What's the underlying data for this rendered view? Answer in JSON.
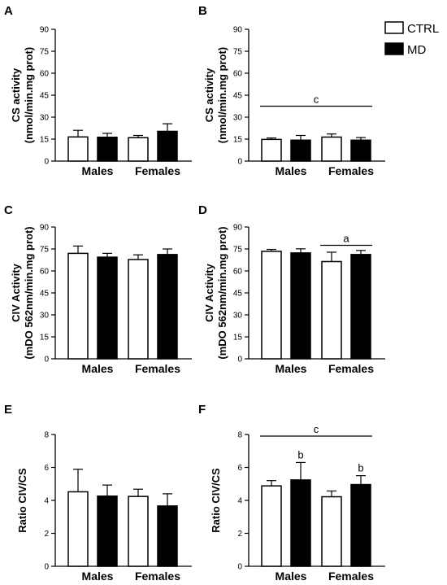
{
  "legend": {
    "position": "top-right",
    "items": [
      {
        "label": "CTRL",
        "color": "#ffffff"
      },
      {
        "label": "MD",
        "color": "#000000"
      }
    ]
  },
  "chart_data": [
    {
      "type": "bar",
      "panel": "A",
      "categories": [
        "Males",
        "Females"
      ],
      "ylabel": [
        "CS activity",
        "(nmol/min.mg prot)"
      ],
      "ylim": [
        0,
        90
      ],
      "yticks": [
        0,
        15,
        30,
        45,
        60,
        75,
        90
      ],
      "series": [
        {
          "name": "CTRL",
          "values": [
            16.5,
            16.0
          ],
          "errors": [
            4.5,
            1.5
          ]
        },
        {
          "name": "MD",
          "values": [
            16.3,
            20.3
          ],
          "errors": [
            2.7,
            5.2
          ]
        }
      ],
      "annotations": []
    },
    {
      "type": "bar",
      "panel": "B",
      "categories": [
        "Males",
        "Females"
      ],
      "ylabel": [
        "CS activity",
        "(nmol/min.mg prot)"
      ],
      "ylim": [
        0,
        90
      ],
      "yticks": [
        0,
        15,
        30,
        45,
        60,
        75,
        90
      ],
      "series": [
        {
          "name": "CTRL",
          "values": [
            14.8,
            16.4
          ],
          "errors": [
            1.0,
            2.1
          ]
        },
        {
          "name": "MD",
          "values": [
            14.3,
            14.3
          ],
          "errors": [
            3.2,
            1.8
          ]
        }
      ],
      "annotations": [
        {
          "text": "c",
          "type": "line",
          "x_from": 0,
          "x_to": 3,
          "y": 37.5
        }
      ]
    },
    {
      "type": "bar",
      "panel": "C",
      "categories": [
        "Males",
        "Females"
      ],
      "ylabel": [
        "CIV Activity",
        "(mDO 562nm/min.mg prot)"
      ],
      "ylim": [
        0,
        90
      ],
      "yticks": [
        0,
        15,
        30,
        45,
        60,
        75,
        90
      ],
      "series": [
        {
          "name": "CTRL",
          "values": [
            72.0,
            67.8
          ],
          "errors": [
            5.0,
            3.2
          ]
        },
        {
          "name": "MD",
          "values": [
            69.4,
            71.2
          ],
          "errors": [
            2.6,
            3.8
          ]
        }
      ],
      "annotations": []
    },
    {
      "type": "bar",
      "panel": "D",
      "categories": [
        "Males",
        "Females"
      ],
      "ylabel": [
        "CIV Activity",
        "(mDO 562nm/min.mg prot)"
      ],
      "ylim": [
        0,
        90
      ],
      "yticks": [
        0,
        15,
        30,
        45,
        60,
        75,
        90
      ],
      "series": [
        {
          "name": "CTRL",
          "values": [
            73.4,
            66.4
          ],
          "errors": [
            1.3,
            6.4
          ]
        },
        {
          "name": "MD",
          "values": [
            72.3,
            71.2
          ],
          "errors": [
            2.8,
            2.8
          ]
        }
      ],
      "annotations": [
        {
          "text": "a",
          "type": "line",
          "x_from": 2,
          "x_to": 3,
          "y": 77.5
        }
      ]
    },
    {
      "type": "bar",
      "panel": "E",
      "categories": [
        "Males",
        "Females"
      ],
      "ylabel": [
        "Ratio CIV/CS"
      ],
      "ylim": [
        0,
        8
      ],
      "yticks": [
        0,
        2,
        4,
        6,
        8
      ],
      "series": [
        {
          "name": "CTRL",
          "values": [
            4.52,
            4.24
          ],
          "errors": [
            1.37,
            0.44
          ]
        },
        {
          "name": "MD",
          "values": [
            4.26,
            3.66
          ],
          "errors": [
            0.67,
            0.74
          ]
        }
      ],
      "annotations": []
    },
    {
      "type": "bar",
      "panel": "F",
      "categories": [
        "Males",
        "Females"
      ],
      "ylabel": [
        "Ratio CIV/CS"
      ],
      "ylim": [
        0,
        8
      ],
      "yticks": [
        0,
        2,
        4,
        6,
        8
      ],
      "series": [
        {
          "name": "CTRL",
          "values": [
            4.88,
            4.22
          ],
          "errors": [
            0.32,
            0.35
          ]
        },
        {
          "name": "MD",
          "values": [
            5.24,
            4.96
          ],
          "errors": [
            1.06,
            0.54
          ]
        }
      ],
      "annotations": [
        {
          "text": "c",
          "type": "line",
          "x_from": 0,
          "x_to": 3,
          "y": 7.9
        },
        {
          "text": "b",
          "type": "above",
          "bar": 1
        },
        {
          "text": "b",
          "type": "above",
          "bar": 3
        }
      ]
    }
  ]
}
